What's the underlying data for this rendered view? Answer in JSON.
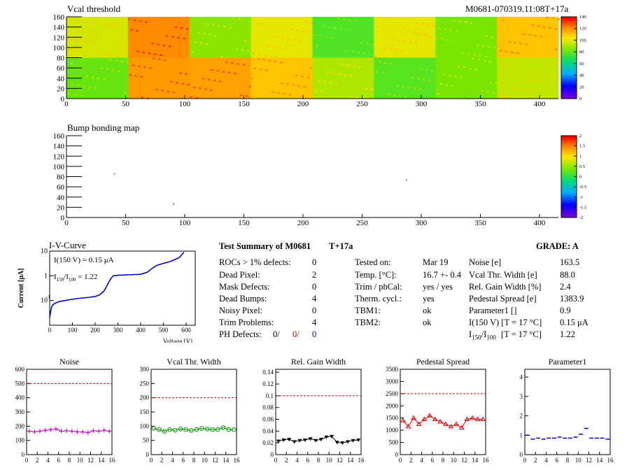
{
  "map_top": {
    "title": "Vcal threshold",
    "header_id": "M0681-070319.11:08T+17a",
    "x_ticks": [
      "0",
      "50",
      "100",
      "150",
      "200",
      "250",
      "300",
      "350",
      "400"
    ],
    "y_ticks": [
      "0",
      "20",
      "40",
      "60",
      "80",
      "100",
      "120",
      "140",
      "160"
    ],
    "palette_ticks": [
      "0",
      "20",
      "40",
      "60",
      "80",
      "100",
      "120",
      "140"
    ]
  },
  "map_bump": {
    "title": "Bump bonding map",
    "x_ticks": [
      "0",
      "50",
      "100",
      "150",
      "200",
      "250",
      "300",
      "350",
      "400"
    ],
    "y_ticks": [
      "0",
      "20",
      "40",
      "60",
      "80",
      "100",
      "120",
      "140",
      "160"
    ],
    "palette_ticks": [
      "-2",
      "-1.5",
      "-1",
      "-0.5",
      "0",
      "0.5",
      "1",
      "1.5",
      "2"
    ]
  },
  "iv": {
    "title": "I-V-Curve",
    "ylabel": "Current [μA]",
    "xlabel": "Voltage [V]",
    "x_ticks": [
      "0",
      "100",
      "200",
      "300",
      "400",
      "500",
      "600"
    ],
    "y_tick_labels": [
      "10",
      "1",
      "10"
    ],
    "y_tick_minus": "-1",
    "ann_current": "I(150 V) = 0.15 μA",
    "ann_ratio_prefix": "I",
    "ann_ratio_sub1": "150",
    "ann_ratio_mid": "/I",
    "ann_ratio_sub2": "100",
    "ann_ratio_value": "=  1.22"
  },
  "summary": {
    "title": "Test Summary of M0681",
    "title_suffix": "T+17a",
    "grade": "GRADE:  A",
    "left": [
      {
        "label": "ROCs > 1% defects:",
        "value": "0"
      },
      {
        "label": "Dead Pixel:",
        "value": "2"
      },
      {
        "label": "Mask Defects:",
        "value": "0"
      },
      {
        "label": "Dead Bumps:",
        "value": "4"
      },
      {
        "label": "Noisy Pixel:",
        "value": "0"
      },
      {
        "label": "Trim Problems:",
        "value": "4"
      }
    ],
    "ph_label": "PH Defects:",
    "ph_values": [
      "0/",
      "0/",
      "0"
    ],
    "ph_colors": [
      "#000000",
      "#cc0000",
      "#0000cc"
    ],
    "middle": [
      {
        "label": "Tested on:",
        "value": "Mar 19"
      },
      {
        "label": "Temp. [°C]:",
        "value": "16.7 +- 0.4"
      },
      {
        "label": "Trim / phCal:",
        "value": "yes / yes"
      },
      {
        "label": "Therm. cycl.:",
        "value": "yes"
      },
      {
        "label": "TBM1:",
        "value": "ok"
      },
      {
        "label": "TBM2:",
        "value": "ok"
      }
    ],
    "right": [
      {
        "label": "Noise [e]",
        "value": "163.5"
      },
      {
        "label": "Vcal Thr. Width [e]",
        "value": "88.0"
      },
      {
        "label": "Rel. Gain Width [%]",
        "value": "2.4"
      },
      {
        "label": "Pedestal Spread [e]",
        "value": "1383.9"
      },
      {
        "label": "Parameter1 []",
        "value": "0.9"
      },
      {
        "label": "I(150 V) [T = 17 °C]",
        "value": "0.15 μA"
      }
    ],
    "ratio_label_i": "I",
    "ratio_label_sub1": "150",
    "ratio_label_mid": "/I",
    "ratio_label_sub2": "100",
    "ratio_label_tail": "[T = 17 °C]",
    "ratio_value": "1.22"
  },
  "colors": {
    "noise": "#cc00cc",
    "vcal": "#009900",
    "gain": "#000000",
    "pedestal": "#dd0000",
    "param1": "#0000cc",
    "cut_line": "#dd0000",
    "iv_curve": "#0000cc"
  },
  "chart_data": [
    {
      "type": "line",
      "title": "Noise",
      "x": [
        0,
        1,
        2,
        3,
        4,
        5,
        6,
        7,
        8,
        9,
        10,
        11,
        12,
        13,
        14,
        15
      ],
      "values": [
        165,
        160,
        165,
        170,
        175,
        180,
        165,
        168,
        165,
        160,
        160,
        155,
        168,
        165,
        170,
        165
      ],
      "cut": 500,
      "ylim": [
        0,
        600
      ],
      "y_ticks": [
        "0",
        "100",
        "200",
        "300",
        "400",
        "500",
        "600"
      ],
      "x_ticks": [
        "0",
        "2",
        "4",
        "6",
        "8",
        "10",
        "12",
        "14",
        "16"
      ],
      "marker": "star"
    },
    {
      "type": "line",
      "title": "Vcal Thr. Width",
      "x": [
        0,
        1,
        2,
        3,
        4,
        5,
        6,
        7,
        8,
        9,
        10,
        11,
        12,
        13,
        14,
        15
      ],
      "values": [
        92,
        88,
        82,
        88,
        86,
        90,
        88,
        85,
        88,
        92,
        90,
        88,
        88,
        95,
        88,
        88
      ],
      "cut": 200,
      "ylim": [
        0,
        300
      ],
      "y_ticks": [
        "0",
        "50",
        "100",
        "150",
        "200",
        "250",
        "300"
      ],
      "x_ticks": [
        "0",
        "2",
        "4",
        "6",
        "8",
        "10",
        "12",
        "14",
        "16"
      ],
      "marker": "circle"
    },
    {
      "type": "line",
      "title": "Rel. Gain Width",
      "x": [
        0,
        1,
        2,
        3,
        4,
        5,
        6,
        7,
        8,
        9,
        10,
        11,
        12,
        13,
        14,
        15
      ],
      "values": [
        0.023,
        0.025,
        0.026,
        0.022,
        0.024,
        0.025,
        0.027,
        0.024,
        0.026,
        0.03,
        0.031,
        0.021,
        0.02,
        0.022,
        0.024,
        0.025
      ],
      "cut": 0.1,
      "ylim": [
        0,
        0.145
      ],
      "y_ticks": [
        "0",
        "0.02",
        "0.04",
        "0.06",
        "0.08",
        "0.1",
        "0.12",
        "0.14"
      ],
      "y_tick_values": [
        0,
        0.02,
        0.04,
        0.06,
        0.08,
        0.1,
        0.12,
        0.14
      ],
      "x_ticks": [
        "0",
        "2",
        "4",
        "6",
        "8",
        "10",
        "12",
        "14",
        "16"
      ],
      "marker": "tri-down"
    },
    {
      "type": "line",
      "title": "Pedestal Spread",
      "x": [
        0,
        1,
        2,
        3,
        4,
        5,
        6,
        7,
        8,
        9,
        10,
        11,
        12,
        13,
        14,
        15
      ],
      "values": [
        1400,
        1150,
        1500,
        1250,
        1450,
        1600,
        1450,
        1350,
        1250,
        1150,
        1250,
        1100,
        1450,
        1500,
        1450,
        1450
      ],
      "cut": 2500,
      "ylim": [
        0,
        3500
      ],
      "y_ticks": [
        "0",
        "500",
        "1000",
        "1500",
        "2000",
        "2500",
        "3000",
        "3500"
      ],
      "x_ticks": [
        "0",
        "2",
        "4",
        "6",
        "8",
        "10",
        "12",
        "14",
        "16"
      ],
      "marker": "tri-up"
    },
    {
      "type": "scatter",
      "title": "Parameter1",
      "x": [
        0,
        1,
        2,
        3,
        4,
        5,
        6,
        7,
        8,
        9,
        10,
        11,
        12,
        13,
        14,
        15
      ],
      "values": [
        1.0,
        0.8,
        0.85,
        0.8,
        0.85,
        0.85,
        0.9,
        0.85,
        0.85,
        0.9,
        1.05,
        1.35,
        0.85,
        0.85,
        0.85,
        0.8
      ],
      "ylim": [
        0,
        4.4
      ],
      "y_ticks": [
        "0",
        "1",
        "2",
        "3",
        "4"
      ],
      "x_ticks": [
        "0",
        "2",
        "4",
        "6",
        "8",
        "10",
        "12",
        "14",
        "16"
      ],
      "marker": "dash"
    },
    {
      "type": "line",
      "title": "I-V-Curve",
      "x": [
        0,
        5,
        10,
        20,
        40,
        80,
        120,
        160,
        200,
        220,
        240,
        260,
        270,
        280,
        300,
        350,
        400,
        430,
        450,
        470,
        500,
        530,
        550,
        570,
        580,
        590
      ],
      "values": [
        0.02,
        0.04,
        0.06,
        0.075,
        0.09,
        0.105,
        0.12,
        0.13,
        0.145,
        0.17,
        0.25,
        0.55,
        0.8,
        1.0,
        1.05,
        1.1,
        1.15,
        1.4,
        2.0,
        2.6,
        3.2,
        3.8,
        4.5,
        5.5,
        7.0,
        9.0
      ],
      "ylim": [
        0.01,
        10
      ],
      "xlim": [
        0,
        640
      ],
      "log_y": true
    }
  ]
}
